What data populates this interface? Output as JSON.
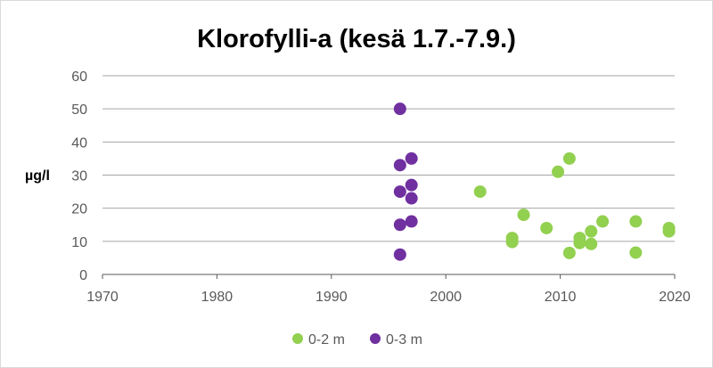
{
  "chart_data": {
    "type": "scatter",
    "title": "Klorofylli-a (kesä 1.7.-7.9.)",
    "ylabel": "µg/l",
    "xlabel": "",
    "xlim": [
      1970,
      2020
    ],
    "ylim": [
      0,
      60
    ],
    "xticks": [
      "1970",
      "1980",
      "1990",
      "2000",
      "2010",
      "2020"
    ],
    "yticks": [
      "0",
      "10",
      "20",
      "30",
      "40",
      "50",
      "60"
    ],
    "grid": "horizontal",
    "legend_position": "bottom",
    "series": [
      {
        "name": "0-2 m",
        "color": "#92d050",
        "points": [
          {
            "x": 2003,
            "y": 25
          },
          {
            "x": 2005.8,
            "y": 11
          },
          {
            "x": 2005.8,
            "y": 9.8
          },
          {
            "x": 2006.8,
            "y": 18
          },
          {
            "x": 2008.8,
            "y": 14
          },
          {
            "x": 2009.8,
            "y": 31
          },
          {
            "x": 2010.8,
            "y": 35
          },
          {
            "x": 2010.8,
            "y": 6.5
          },
          {
            "x": 2011.7,
            "y": 11
          },
          {
            "x": 2011.7,
            "y": 9.5
          },
          {
            "x": 2012.7,
            "y": 13
          },
          {
            "x": 2012.7,
            "y": 9.2
          },
          {
            "x": 2013.7,
            "y": 16
          },
          {
            "x": 2016.6,
            "y": 16
          },
          {
            "x": 2016.6,
            "y": 6.6
          },
          {
            "x": 2019.5,
            "y": 14
          },
          {
            "x": 2019.5,
            "y": 13
          }
        ]
      },
      {
        "name": "0-3 m",
        "color": "#7030a0",
        "points": [
          {
            "x": 1996,
            "y": 50
          },
          {
            "x": 1996,
            "y": 33
          },
          {
            "x": 1996,
            "y": 25
          },
          {
            "x": 1996,
            "y": 15
          },
          {
            "x": 1996,
            "y": 6
          },
          {
            "x": 1997,
            "y": 35
          },
          {
            "x": 1997,
            "y": 27
          },
          {
            "x": 1997,
            "y": 23
          },
          {
            "x": 1997,
            "y": 16
          }
        ]
      }
    ]
  }
}
